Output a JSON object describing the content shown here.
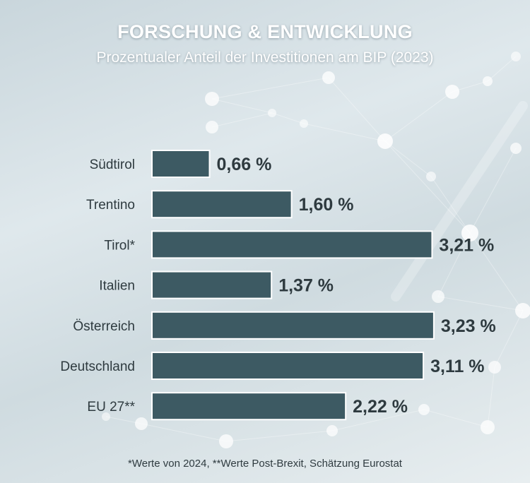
{
  "header": {
    "title": "FORSCHUNG & ENTWICKLUNG",
    "subtitle": "Prozentualer Anteil der Investitionen am BIP (2023)"
  },
  "footnote": "*Werte von 2024, **Werte Post-Brexit, Schätzung Eurostat",
  "colors": {
    "bar": "#3d5a63",
    "bar_stroke": "#ffffff",
    "label": "#2e3a3f",
    "value": "#2e3a3f"
  },
  "chart_data": {
    "type": "bar",
    "orientation": "horizontal",
    "title": "FORSCHUNG & ENTWICKLUNG",
    "subtitle": "Prozentualer Anteil der Investitionen am BIP (2023)",
    "categories": [
      "Südtirol",
      "Trentino",
      "Tirol*",
      "Italien",
      "Österreich",
      "Deutschland",
      "EU 27**"
    ],
    "values": [
      0.66,
      1.6,
      3.21,
      1.37,
      3.23,
      3.11,
      2.22
    ],
    "value_labels": [
      "0,66 %",
      "1,60 %",
      "3,21 %",
      "1,37 %",
      "3,23 %",
      "3,11 %",
      "2,22 %"
    ],
    "xlabel": "",
    "ylabel": "",
    "grid": false,
    "legend": "none"
  }
}
